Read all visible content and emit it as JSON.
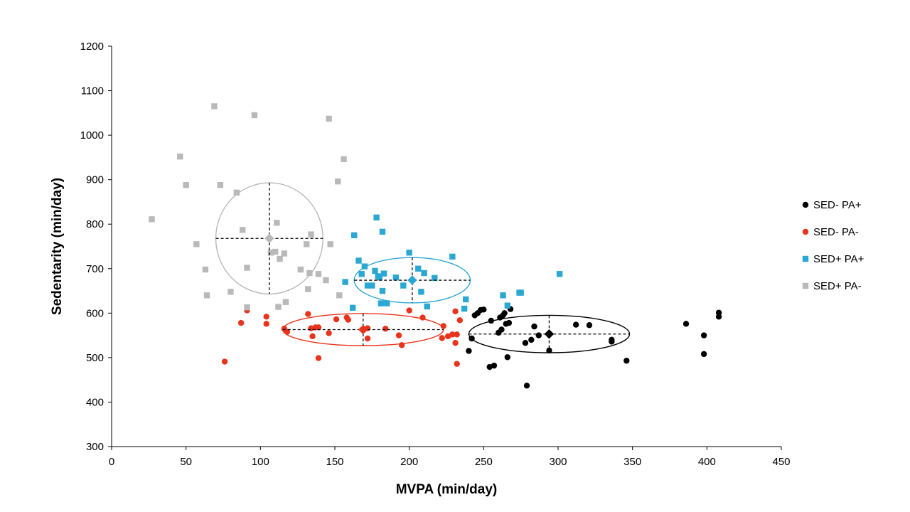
{
  "chart_data": {
    "type": "scatter",
    "xlabel": "MVPA (min/day)",
    "ylabel": "Sedentarity (min/day)",
    "xlim": [
      0,
      450
    ],
    "ylim": [
      300,
      1200
    ],
    "xticks": [
      "0",
      "50",
      "100",
      "150",
      "200",
      "250",
      "300",
      "350",
      "400",
      "450"
    ],
    "yticks": [
      "300",
      "400",
      "500",
      "600",
      "700",
      "800",
      "900",
      "1000",
      "1100",
      "1200"
    ],
    "grid": false,
    "legend_position": "right",
    "series": [
      {
        "name": "SED- PA+",
        "marker": "circle",
        "color": "#000000",
        "mean": {
          "x": 294,
          "y": 553
        },
        "sd": {
          "x": 54,
          "y": 42
        },
        "ellipse_color": "#000000",
        "points": [
          {
            "x": 240,
            "y": 515
          },
          {
            "x": 242,
            "y": 543
          },
          {
            "x": 244,
            "y": 595
          },
          {
            "x": 246,
            "y": 600
          },
          {
            "x": 248,
            "y": 607
          },
          {
            "x": 250,
            "y": 608
          },
          {
            "x": 254,
            "y": 479
          },
          {
            "x": 255,
            "y": 583
          },
          {
            "x": 257,
            "y": 482
          },
          {
            "x": 260,
            "y": 556
          },
          {
            "x": 261,
            "y": 590
          },
          {
            "x": 262,
            "y": 563
          },
          {
            "x": 263,
            "y": 595
          },
          {
            "x": 264,
            "y": 600
          },
          {
            "x": 265,
            "y": 576
          },
          {
            "x": 266,
            "y": 501
          },
          {
            "x": 267,
            "y": 578
          },
          {
            "x": 268,
            "y": 609
          },
          {
            "x": 278,
            "y": 533
          },
          {
            "x": 279,
            "y": 437
          },
          {
            "x": 282,
            "y": 540
          },
          {
            "x": 284,
            "y": 570
          },
          {
            "x": 287,
            "y": 550
          },
          {
            "x": 294,
            "y": 516
          },
          {
            "x": 312,
            "y": 574
          },
          {
            "x": 321,
            "y": 573
          },
          {
            "x": 336,
            "y": 540
          },
          {
            "x": 336,
            "y": 536
          },
          {
            "x": 346,
            "y": 493
          },
          {
            "x": 386,
            "y": 576
          },
          {
            "x": 398,
            "y": 550
          },
          {
            "x": 398,
            "y": 508
          },
          {
            "x": 408,
            "y": 592
          },
          {
            "x": 408,
            "y": 601
          }
        ]
      },
      {
        "name": "SED- PA-",
        "marker": "circle",
        "color": "#e8341c",
        "mean": {
          "x": 169,
          "y": 563
        },
        "sd": {
          "x": 54,
          "y": 36
        },
        "ellipse_color": "#e8341c",
        "points": [
          {
            "x": 76,
            "y": 491
          },
          {
            "x": 87,
            "y": 578
          },
          {
            "x": 91,
            "y": 606
          },
          {
            "x": 104,
            "y": 592
          },
          {
            "x": 104,
            "y": 576
          },
          {
            "x": 116,
            "y": 565
          },
          {
            "x": 118,
            "y": 558
          },
          {
            "x": 132,
            "y": 598
          },
          {
            "x": 134,
            "y": 566
          },
          {
            "x": 135,
            "y": 548
          },
          {
            "x": 137,
            "y": 568
          },
          {
            "x": 139,
            "y": 499
          },
          {
            "x": 139,
            "y": 568
          },
          {
            "x": 146,
            "y": 555
          },
          {
            "x": 151,
            "y": 586
          },
          {
            "x": 158,
            "y": 590
          },
          {
            "x": 159,
            "y": 585
          },
          {
            "x": 172,
            "y": 543
          },
          {
            "x": 172,
            "y": 566
          },
          {
            "x": 184,
            "y": 565
          },
          {
            "x": 193,
            "y": 550
          },
          {
            "x": 195,
            "y": 528
          },
          {
            "x": 200,
            "y": 606
          },
          {
            "x": 209,
            "y": 590
          },
          {
            "x": 222,
            "y": 544
          },
          {
            "x": 223,
            "y": 571
          },
          {
            "x": 226,
            "y": 548
          },
          {
            "x": 229,
            "y": 552
          },
          {
            "x": 231,
            "y": 604
          },
          {
            "x": 231,
            "y": 533
          },
          {
            "x": 232,
            "y": 552
          },
          {
            "x": 232,
            "y": 486
          },
          {
            "x": 234,
            "y": 584
          }
        ]
      },
      {
        "name": "SED+ PA+",
        "marker": "square",
        "color": "#2aa8d3",
        "mean": {
          "x": 202,
          "y": 674
        },
        "sd": {
          "x": 39,
          "y": 51
        },
        "ellipse_color": "#2aa8d3",
        "points": [
          {
            "x": 157,
            "y": 670
          },
          {
            "x": 162,
            "y": 612
          },
          {
            "x": 163,
            "y": 775
          },
          {
            "x": 166,
            "y": 718
          },
          {
            "x": 168,
            "y": 688
          },
          {
            "x": 170,
            "y": 705
          },
          {
            "x": 172,
            "y": 662
          },
          {
            "x": 175,
            "y": 662
          },
          {
            "x": 177,
            "y": 695
          },
          {
            "x": 178,
            "y": 815
          },
          {
            "x": 179,
            "y": 683
          },
          {
            "x": 180,
            "y": 680
          },
          {
            "x": 181,
            "y": 622
          },
          {
            "x": 182,
            "y": 783
          },
          {
            "x": 182,
            "y": 650
          },
          {
            "x": 183,
            "y": 689
          },
          {
            "x": 185,
            "y": 622
          },
          {
            "x": 191,
            "y": 680
          },
          {
            "x": 196,
            "y": 662
          },
          {
            "x": 200,
            "y": 736
          },
          {
            "x": 206,
            "y": 700
          },
          {
            "x": 208,
            "y": 648
          },
          {
            "x": 210,
            "y": 690
          },
          {
            "x": 212,
            "y": 615
          },
          {
            "x": 217,
            "y": 679
          },
          {
            "x": 229,
            "y": 727
          },
          {
            "x": 237,
            "y": 610
          },
          {
            "x": 238,
            "y": 631
          },
          {
            "x": 263,
            "y": 640
          },
          {
            "x": 266,
            "y": 617
          },
          {
            "x": 274,
            "y": 646
          },
          {
            "x": 275,
            "y": 646
          },
          {
            "x": 301,
            "y": 688
          }
        ]
      },
      {
        "name": "SED+ PA-",
        "marker": "square",
        "color": "#b9b9b9",
        "mean": {
          "x": 106,
          "y": 768
        },
        "sd": {
          "x": 36,
          "y": 125
        },
        "ellipse_color": "#b9b9b9",
        "points": [
          {
            "x": 27,
            "y": 811
          },
          {
            "x": 46,
            "y": 952
          },
          {
            "x": 50,
            "y": 888
          },
          {
            "x": 57,
            "y": 755
          },
          {
            "x": 63,
            "y": 698
          },
          {
            "x": 64,
            "y": 640
          },
          {
            "x": 69,
            "y": 1065
          },
          {
            "x": 73,
            "y": 888
          },
          {
            "x": 80,
            "y": 648
          },
          {
            "x": 84,
            "y": 871
          },
          {
            "x": 88,
            "y": 787
          },
          {
            "x": 91,
            "y": 613
          },
          {
            "x": 91,
            "y": 702
          },
          {
            "x": 96,
            "y": 1045
          },
          {
            "x": 107,
            "y": 736
          },
          {
            "x": 110,
            "y": 738
          },
          {
            "x": 111,
            "y": 803
          },
          {
            "x": 112,
            "y": 614
          },
          {
            "x": 113,
            "y": 722
          },
          {
            "x": 116,
            "y": 734
          },
          {
            "x": 117,
            "y": 625
          },
          {
            "x": 127,
            "y": 698
          },
          {
            "x": 131,
            "y": 755
          },
          {
            "x": 132,
            "y": 654
          },
          {
            "x": 133,
            "y": 690
          },
          {
            "x": 134,
            "y": 777
          },
          {
            "x": 139,
            "y": 688
          },
          {
            "x": 144,
            "y": 674
          },
          {
            "x": 146,
            "y": 1037
          },
          {
            "x": 147,
            "y": 755
          },
          {
            "x": 152,
            "y": 896
          },
          {
            "x": 153,
            "y": 640
          },
          {
            "x": 156,
            "y": 946
          }
        ]
      }
    ]
  }
}
